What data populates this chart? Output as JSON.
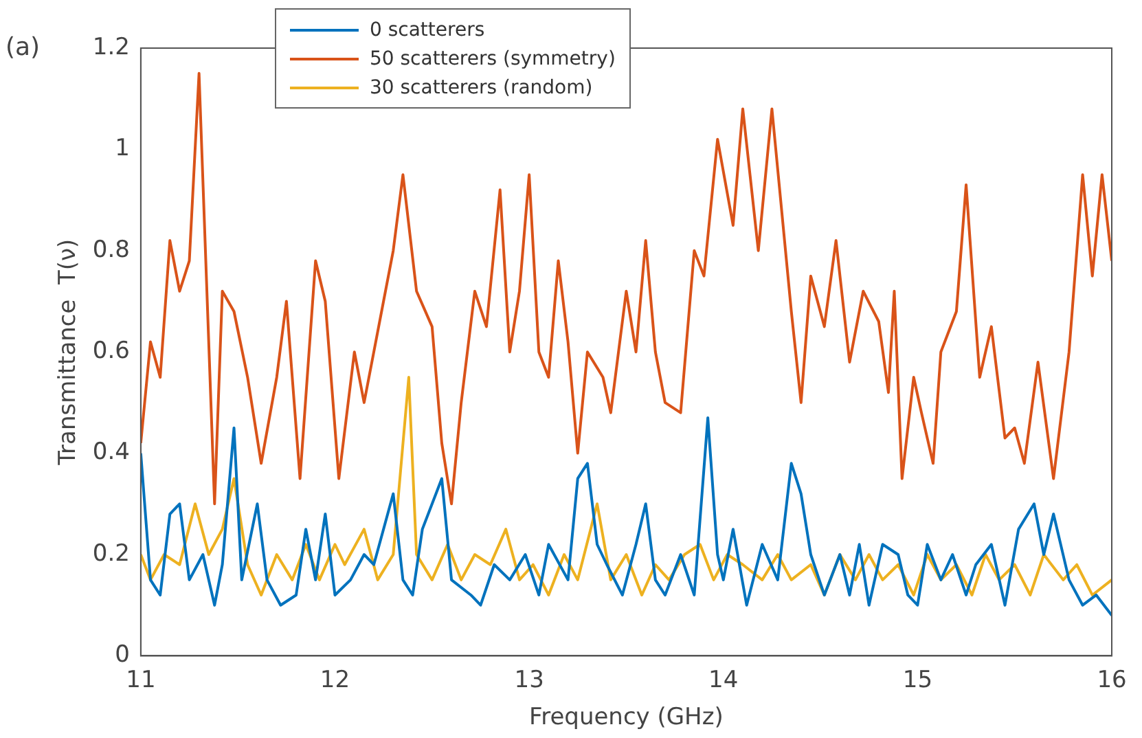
{
  "chart_data": {
    "type": "line",
    "xlabel": "Frequency (GHz)",
    "ylabel": "Transmittance  T(ν)",
    "annotations": [
      "(a)"
    ],
    "xlim": [
      11,
      16
    ],
    "xticks": [
      11,
      12,
      13,
      14,
      15,
      16
    ],
    "ylim": [
      0,
      1.2
    ],
    "yticks": [
      0,
      0.2,
      0.4,
      0.6,
      0.8,
      1,
      1.2
    ],
    "grid": false,
    "legend": "top left",
    "marker": "none",
    "line_style": "solid",
    "series": [
      {
        "name": "0 scatterers",
        "color": "#0072bd",
        "x": [
          11.0,
          11.05,
          11.1,
          11.15,
          11.2,
          11.25,
          11.32,
          11.38,
          11.42,
          11.48,
          11.52,
          11.6,
          11.65,
          11.72,
          11.8,
          11.85,
          11.9,
          11.95,
          12.0,
          12.08,
          12.15,
          12.2,
          12.3,
          12.35,
          12.4,
          12.45,
          12.55,
          12.6,
          12.7,
          12.75,
          12.82,
          12.9,
          12.98,
          13.05,
          13.1,
          13.2,
          13.25,
          13.3,
          13.35,
          13.4,
          13.48,
          13.55,
          13.6,
          13.65,
          13.7,
          13.78,
          13.85,
          13.92,
          13.97,
          14.0,
          14.05,
          14.12,
          14.2,
          14.28,
          14.35,
          14.4,
          14.45,
          14.52,
          14.6,
          14.65,
          14.7,
          14.75,
          14.82,
          14.9,
          14.95,
          15.0,
          15.05,
          15.12,
          15.18,
          15.25,
          15.3,
          15.38,
          15.45,
          15.52,
          15.6,
          15.65,
          15.7,
          15.78,
          15.85,
          15.92,
          16.0
        ],
        "values": [
          0.4,
          0.15,
          0.12,
          0.28,
          0.3,
          0.15,
          0.2,
          0.1,
          0.18,
          0.45,
          0.15,
          0.3,
          0.15,
          0.1,
          0.12,
          0.25,
          0.15,
          0.28,
          0.12,
          0.15,
          0.2,
          0.18,
          0.32,
          0.15,
          0.12,
          0.25,
          0.35,
          0.15,
          0.12,
          0.1,
          0.18,
          0.15,
          0.2,
          0.12,
          0.22,
          0.15,
          0.35,
          0.38,
          0.22,
          0.18,
          0.12,
          0.22,
          0.3,
          0.15,
          0.12,
          0.2,
          0.12,
          0.47,
          0.2,
          0.15,
          0.25,
          0.1,
          0.22,
          0.15,
          0.38,
          0.32,
          0.2,
          0.12,
          0.2,
          0.12,
          0.22,
          0.1,
          0.22,
          0.2,
          0.12,
          0.1,
          0.22,
          0.15,
          0.2,
          0.12,
          0.18,
          0.22,
          0.1,
          0.25,
          0.3,
          0.2,
          0.28,
          0.15,
          0.1,
          0.12,
          0.08
        ]
      },
      {
        "name": "50 scatterers (symmetry)",
        "color": "#d95319",
        "x": [
          11.0,
          11.05,
          11.1,
          11.15,
          11.2,
          11.25,
          11.3,
          11.38,
          11.42,
          11.48,
          11.55,
          11.62,
          11.7,
          11.75,
          11.82,
          11.9,
          11.95,
          12.02,
          12.1,
          12.15,
          12.25,
          12.3,
          12.35,
          12.42,
          12.5,
          12.55,
          12.6,
          12.65,
          12.72,
          12.78,
          12.85,
          12.9,
          12.95,
          13.0,
          13.05,
          13.1,
          13.15,
          13.2,
          13.25,
          13.3,
          13.38,
          13.42,
          13.5,
          13.55,
          13.6,
          13.65,
          13.7,
          13.78,
          13.85,
          13.9,
          13.97,
          14.05,
          14.1,
          14.18,
          14.25,
          14.35,
          14.4,
          14.45,
          14.52,
          14.58,
          14.65,
          14.72,
          14.8,
          14.85,
          14.88,
          14.92,
          14.98,
          15.02,
          15.08,
          15.12,
          15.2,
          15.25,
          15.32,
          15.38,
          15.45,
          15.5,
          15.55,
          15.62,
          15.7,
          15.78,
          15.85,
          15.9,
          15.95,
          16.0
        ],
        "values": [
          0.42,
          0.62,
          0.55,
          0.82,
          0.72,
          0.78,
          1.15,
          0.3,
          0.72,
          0.68,
          0.55,
          0.38,
          0.55,
          0.7,
          0.35,
          0.78,
          0.7,
          0.35,
          0.6,
          0.5,
          0.7,
          0.8,
          0.95,
          0.72,
          0.65,
          0.42,
          0.3,
          0.5,
          0.72,
          0.65,
          0.92,
          0.6,
          0.72,
          0.95,
          0.6,
          0.55,
          0.78,
          0.62,
          0.4,
          0.6,
          0.55,
          0.48,
          0.72,
          0.6,
          0.82,
          0.6,
          0.5,
          0.48,
          0.8,
          0.75,
          1.02,
          0.85,
          1.08,
          0.8,
          1.08,
          0.68,
          0.5,
          0.75,
          0.65,
          0.82,
          0.58,
          0.72,
          0.66,
          0.52,
          0.72,
          0.35,
          0.55,
          0.48,
          0.38,
          0.6,
          0.68,
          0.93,
          0.55,
          0.65,
          0.43,
          0.45,
          0.38,
          0.58,
          0.35,
          0.6,
          0.95,
          0.75,
          0.95,
          0.78
        ]
      },
      {
        "name": "30 scatterers (random)",
        "color": "#edb120",
        "x": [
          11.0,
          11.05,
          11.12,
          11.2,
          11.28,
          11.35,
          11.42,
          11.48,
          11.55,
          11.62,
          11.7,
          11.78,
          11.85,
          11.92,
          12.0,
          12.05,
          12.15,
          12.22,
          12.3,
          12.38,
          12.42,
          12.5,
          12.58,
          12.65,
          12.72,
          12.8,
          12.88,
          12.95,
          13.02,
          13.1,
          13.18,
          13.25,
          13.35,
          13.42,
          13.5,
          13.58,
          13.65,
          13.72,
          13.8,
          13.88,
          13.95,
          14.02,
          14.1,
          14.2,
          14.28,
          14.35,
          14.45,
          14.52,
          14.6,
          14.68,
          14.75,
          14.82,
          14.9,
          14.98,
          15.05,
          15.12,
          15.2,
          15.28,
          15.35,
          15.42,
          15.5,
          15.58,
          15.65,
          15.75,
          15.82,
          15.9,
          16.0
        ],
        "values": [
          0.2,
          0.15,
          0.2,
          0.18,
          0.3,
          0.2,
          0.25,
          0.35,
          0.18,
          0.12,
          0.2,
          0.15,
          0.22,
          0.15,
          0.22,
          0.18,
          0.25,
          0.15,
          0.2,
          0.55,
          0.2,
          0.15,
          0.22,
          0.15,
          0.2,
          0.18,
          0.25,
          0.15,
          0.18,
          0.12,
          0.2,
          0.15,
          0.3,
          0.15,
          0.2,
          0.12,
          0.18,
          0.15,
          0.2,
          0.22,
          0.15,
          0.2,
          0.18,
          0.15,
          0.2,
          0.15,
          0.18,
          0.12,
          0.2,
          0.15,
          0.2,
          0.15,
          0.18,
          0.12,
          0.2,
          0.15,
          0.18,
          0.12,
          0.2,
          0.15,
          0.18,
          0.12,
          0.2,
          0.15,
          0.18,
          0.12,
          0.15
        ]
      }
    ]
  }
}
